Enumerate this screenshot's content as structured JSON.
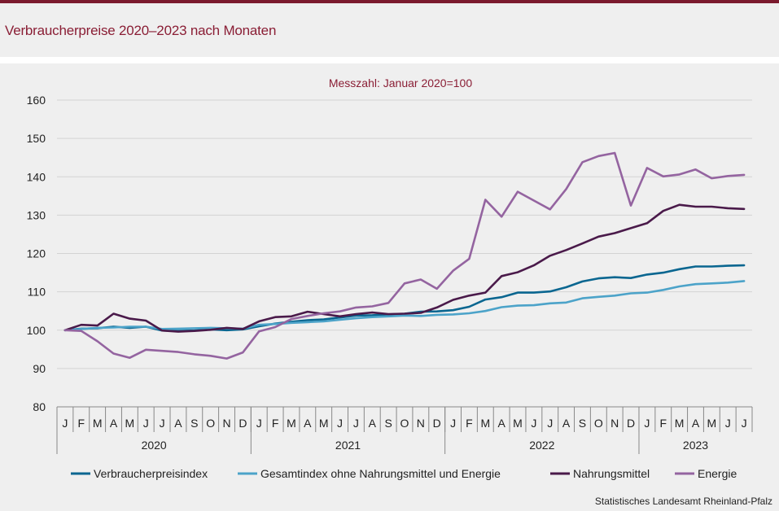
{
  "header": {
    "title": "Verbraucherpreise 2020–2023 nach Monaten"
  },
  "source": "Statistisches Landesamt Rheinland-Pfalz",
  "chart_data": {
    "type": "line",
    "title": "Verbraucherpreise 2020–2023 nach Monaten",
    "subtitle": "Messzahl: Januar 2020=100",
    "ylim": [
      80,
      160
    ],
    "yticks": [
      80,
      90,
      100,
      110,
      120,
      130,
      140,
      150,
      160
    ],
    "month_labels": [
      "J",
      "F",
      "M",
      "A",
      "M",
      "J",
      "J",
      "A",
      "S",
      "O",
      "N",
      "D",
      "J",
      "F",
      "M",
      "A",
      "M",
      "J",
      "J",
      "A",
      "S",
      "O",
      "N",
      "D",
      "J",
      "F",
      "M",
      "A",
      "M",
      "J",
      "J",
      "A",
      "S",
      "O",
      "N",
      "D",
      "J",
      "F",
      "M",
      "A",
      "M",
      "J",
      "J"
    ],
    "years": [
      {
        "label": "2020",
        "months": 12
      },
      {
        "label": "2021",
        "months": 12
      },
      {
        "label": "2022",
        "months": 12
      },
      {
        "label": "2023",
        "months": 7
      }
    ],
    "series": [
      {
        "name": "Verbraucherpreisindex",
        "color": "#0a6690",
        "values": [
          100,
          100.4,
          100.5,
          100.9,
          100.6,
          100.9,
          99.9,
          99.8,
          99.9,
          100.2,
          100,
          100.2,
          101,
          101.7,
          102.2,
          102.6,
          102.8,
          103.3,
          103.8,
          103.9,
          104.1,
          104.3,
          104.8,
          104.9,
          105.2,
          106.1,
          108,
          108.6,
          109.8,
          109.8,
          110.1,
          111.2,
          112.7,
          113.5,
          113.8,
          113.6,
          114.5,
          115,
          115.9,
          116.6,
          116.6,
          116.8,
          116.9
        ]
      },
      {
        "name": "Gesamtindex ohne Nahrungsmittel und Energie",
        "color": "#4ca3c9",
        "values": [
          100,
          100.3,
          100.6,
          100.7,
          100.9,
          100.9,
          100.3,
          100.4,
          100.5,
          100.6,
          100.5,
          100.4,
          101.4,
          101.6,
          101.9,
          102.1,
          102.3,
          102.7,
          103.1,
          103.4,
          103.6,
          103.8,
          103.7,
          104,
          104.1,
          104.4,
          105,
          106,
          106.4,
          106.5,
          107,
          107.2,
          108.3,
          108.7,
          109,
          109.6,
          109.8,
          110.5,
          111.4,
          112,
          112.2,
          112.4,
          112.8
        ]
      },
      {
        "name": "Nahrungsmittel",
        "color": "#4a1a4a",
        "values": [
          100,
          101.4,
          101.2,
          104.3,
          103,
          102.5,
          99.9,
          99.6,
          99.8,
          100.1,
          100.6,
          100.3,
          102.3,
          103.4,
          103.6,
          104.8,
          104.2,
          103.6,
          104.2,
          104.6,
          104.2,
          104.3,
          104.5,
          105.9,
          107.9,
          109,
          109.8,
          114.1,
          115.1,
          116.9,
          119.4,
          120.9,
          122.6,
          124.4,
          125.3,
          126.6,
          127.9,
          131.1,
          132.7,
          132.2,
          132.2,
          131.8,
          131.6
        ]
      },
      {
        "name": "Energie",
        "color": "#9464a0",
        "values": [
          100,
          99.8,
          97.1,
          93.9,
          92.8,
          94.9,
          94.6,
          94.3,
          93.7,
          93.3,
          92.6,
          94.2,
          99.7,
          100.8,
          102.9,
          103.7,
          104.4,
          104.9,
          105.9,
          106.2,
          107.1,
          112.2,
          113.2,
          110.8,
          115.5,
          118.6,
          134,
          129.6,
          136.1,
          133.8,
          131.5,
          136.8,
          143.8,
          145.4,
          146.2,
          132.5,
          142.3,
          140.1,
          140.6,
          141.9,
          139.6,
          140.2,
          140.5
        ]
      }
    ]
  }
}
